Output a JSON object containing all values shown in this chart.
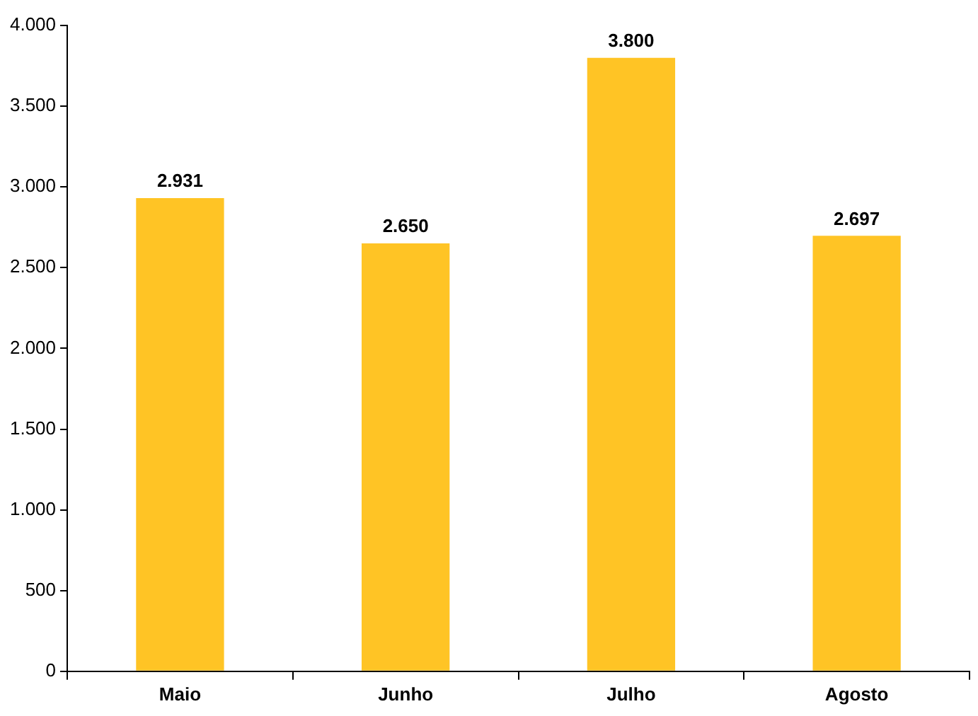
{
  "chart_data": {
    "type": "bar",
    "categories": [
      "Maio",
      "Junho",
      "Julho",
      "Agosto"
    ],
    "values": [
      2931,
      2650,
      3800,
      2697
    ],
    "value_labels": [
      "2.931",
      "2.650",
      "3.800",
      "2.697"
    ],
    "color": "#ffc425",
    "ylim": [
      0,
      4000
    ],
    "yticks": [
      0,
      500,
      {
        "value": 1000,
        "label": "1.000"
      },
      {
        "value": 1500,
        "label": "1.500"
      },
      {
        "value": 2000,
        "label": "2.000"
      },
      {
        "value": 2500,
        "label": "2.500"
      },
      {
        "value": 3000,
        "label": "3.000"
      },
      {
        "value": 3500,
        "label": "3.500"
      },
      {
        "value": 4000,
        "label": "4.000"
      }
    ],
    "grid": false,
    "legend": false
  }
}
